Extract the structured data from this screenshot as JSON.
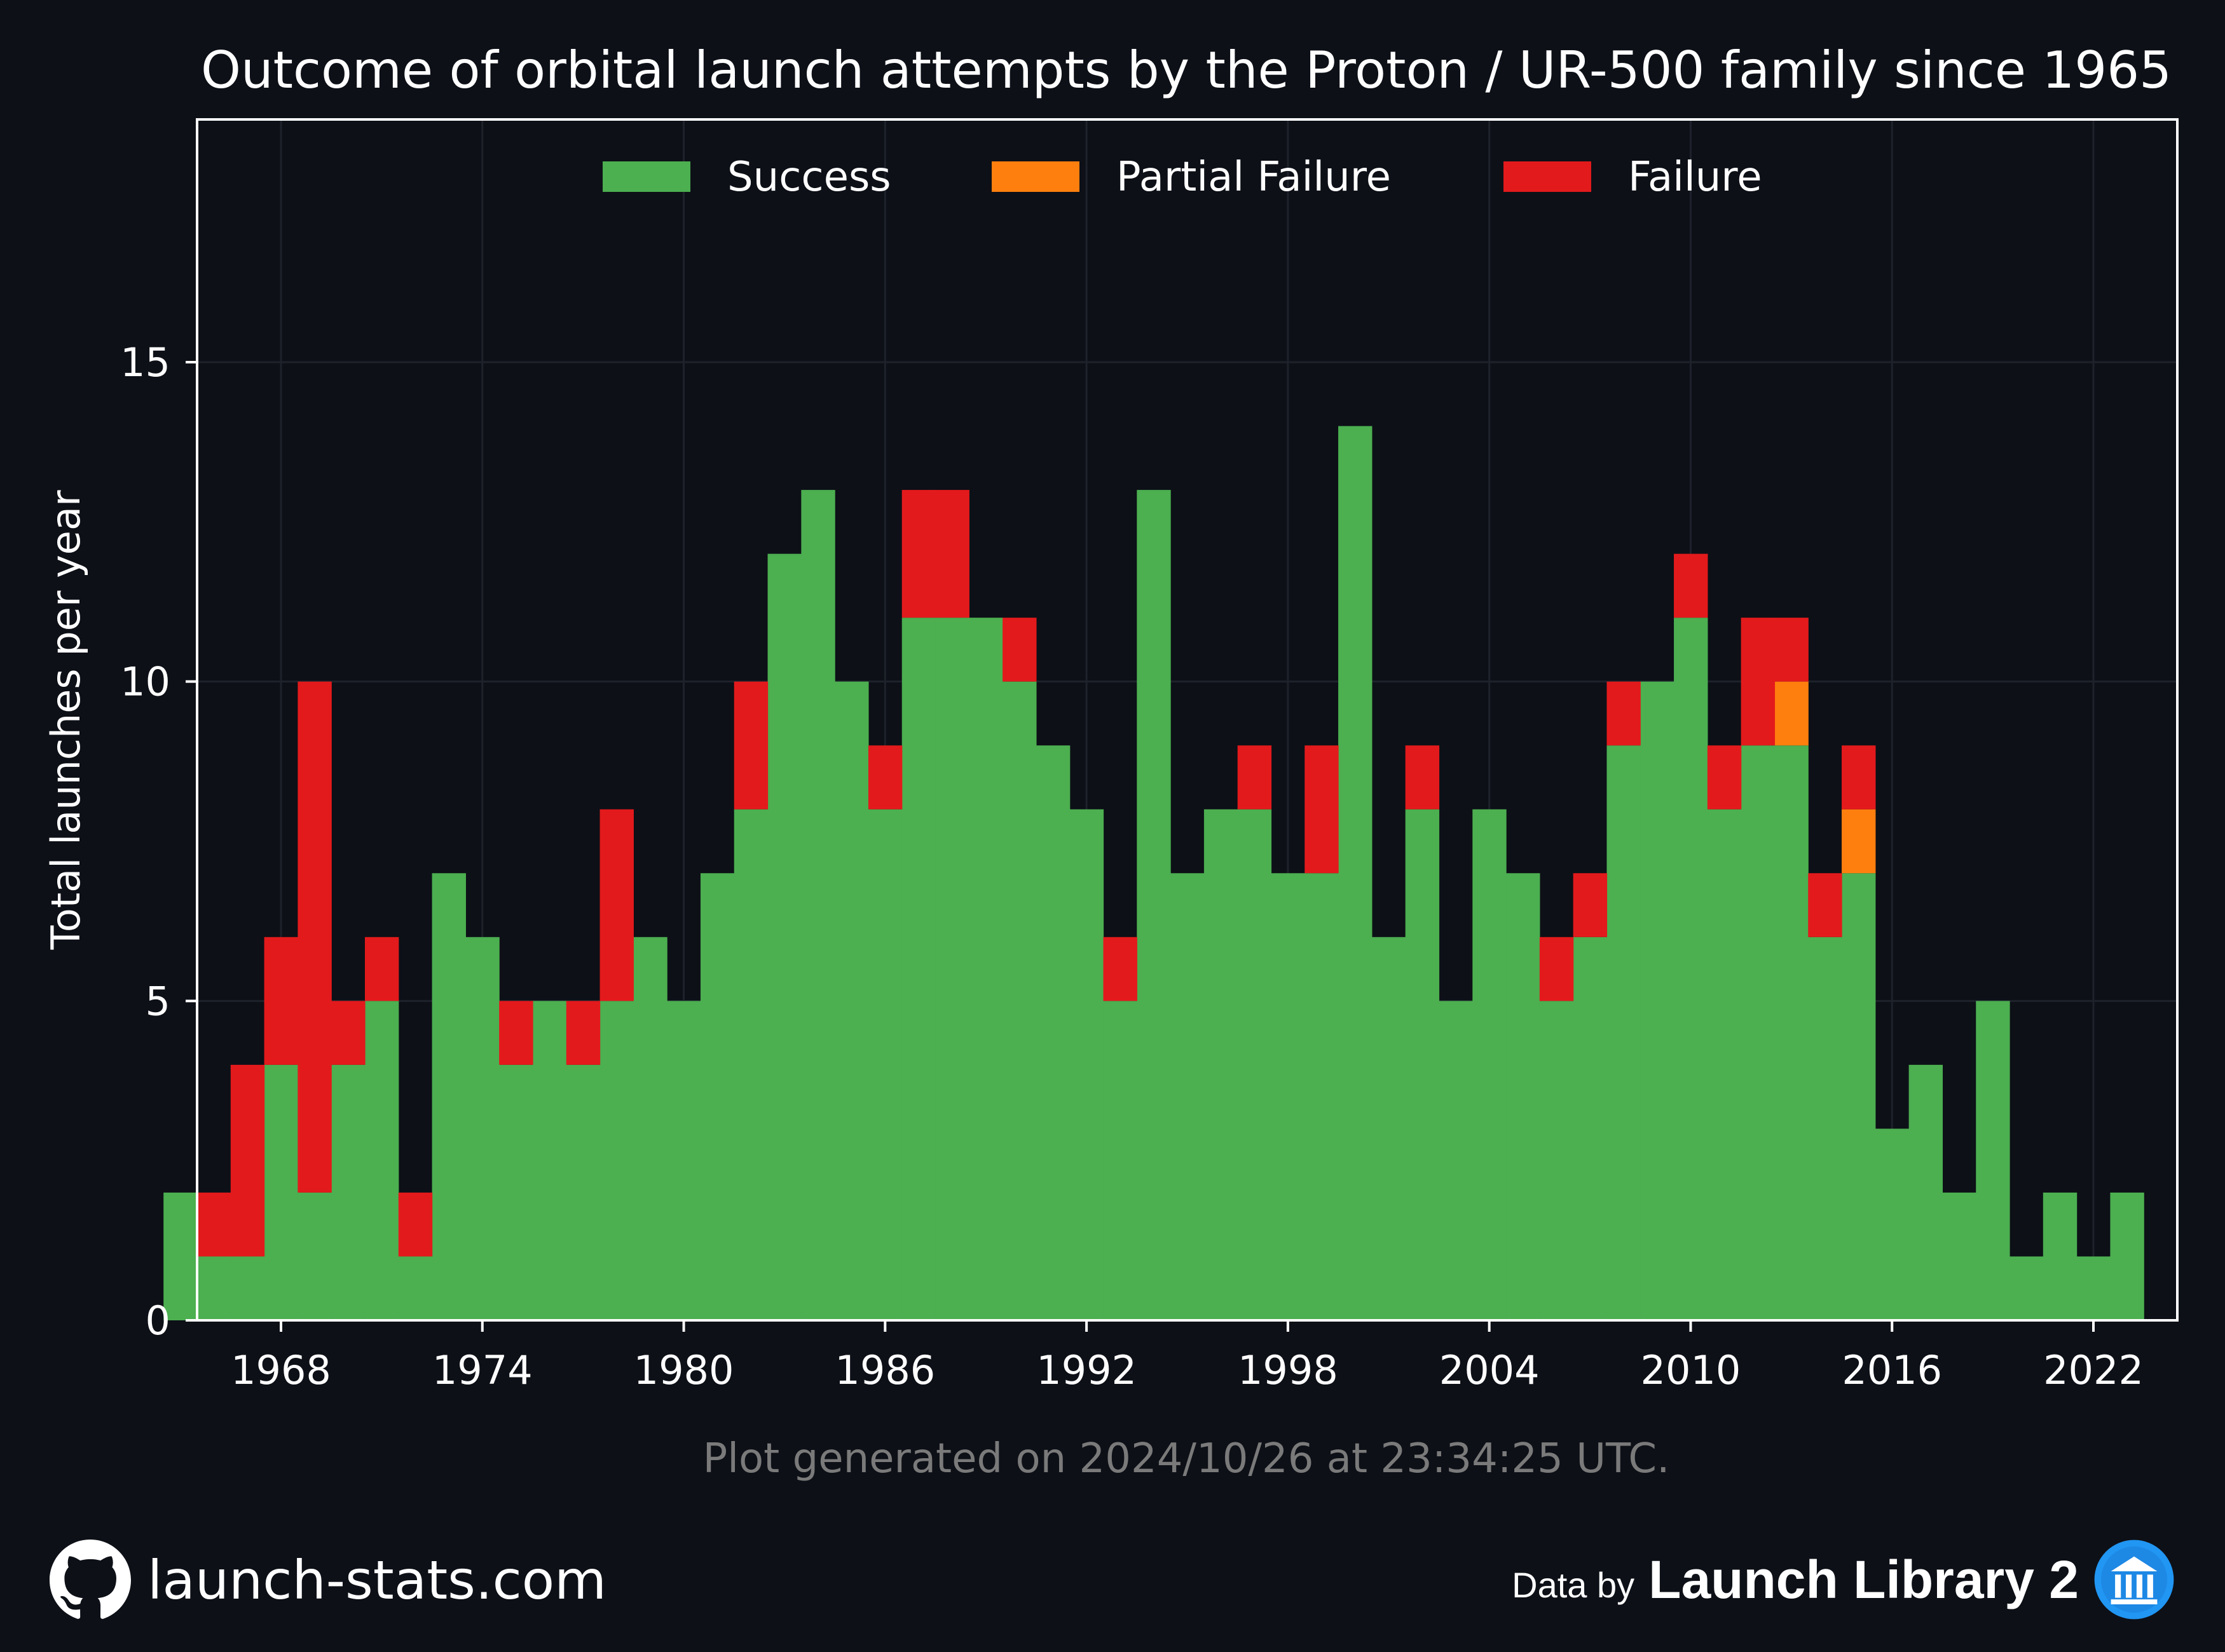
{
  "colors": {
    "background": "#0d1017",
    "success": "#4caf50",
    "partial_failure": "#ff7f0e",
    "failure": "#e31a1c",
    "axis": "#ffffff",
    "grid": "#1e222b",
    "footnote": "#7a7a7a",
    "brand_icon": "#2196f3"
  },
  "footer": {
    "site_icon": "github-icon",
    "site": "launch-stats.com",
    "data_by": "Data by",
    "brand": "Launch Library 2",
    "brand_icon": "library-icon"
  },
  "chart_data": {
    "type": "bar",
    "stacked": true,
    "title": "Outcome of orbital launch attempts by the Proton / UR-500 family since 1965",
    "ylabel": "Total launches per year",
    "xlabel": "",
    "footnote": "Plot generated on 2024/10/26 at 23:34:25 UTC.",
    "xlim": [
      1965.5,
      2024.5
    ],
    "ylim": [
      0,
      18.8
    ],
    "xticks": [
      1968,
      1974,
      1980,
      1986,
      1992,
      1998,
      2004,
      2010,
      2016,
      2022
    ],
    "yticks": [
      0,
      5,
      10,
      15
    ],
    "grid": true,
    "legend": {
      "position": "top-center",
      "entries": [
        "Success",
        "Partial Failure",
        "Failure"
      ]
    },
    "categories": [
      1965,
      1966,
      1967,
      1968,
      1969,
      1970,
      1971,
      1972,
      1973,
      1974,
      1975,
      1976,
      1977,
      1978,
      1979,
      1980,
      1981,
      1982,
      1983,
      1984,
      1985,
      1986,
      1987,
      1988,
      1989,
      1990,
      1991,
      1992,
      1993,
      1994,
      1995,
      1996,
      1997,
      1998,
      1999,
      2000,
      2001,
      2002,
      2003,
      2004,
      2005,
      2006,
      2007,
      2008,
      2009,
      2010,
      2011,
      2012,
      2013,
      2014,
      2015,
      2016,
      2017,
      2018,
      2019,
      2020,
      2021,
      2022,
      2023,
      2024
    ],
    "series": [
      {
        "name": "Success",
        "color": "#4caf50",
        "values": [
          2,
          1,
          1,
          4,
          2,
          4,
          5,
          1,
          7,
          6,
          4,
          5,
          4,
          5,
          6,
          5,
          7,
          8,
          12,
          13,
          10,
          8,
          11,
          11,
          11,
          10,
          9,
          8,
          5,
          13,
          7,
          8,
          8,
          7,
          7,
          14,
          6,
          8,
          5,
          8,
          7,
          5,
          6,
          9,
          10,
          11,
          8,
          9,
          9,
          6,
          7,
          3,
          4,
          2,
          5,
          1,
          2,
          1,
          2,
          0
        ]
      },
      {
        "name": "Partial Failure",
        "color": "#ff7f0e",
        "values": [
          0,
          0,
          0,
          0,
          0,
          0,
          0,
          0,
          0,
          0,
          0,
          0,
          0,
          0,
          0,
          0,
          0,
          0,
          0,
          0,
          0,
          0,
          0,
          0,
          0,
          0,
          0,
          0,
          0,
          0,
          0,
          0,
          0,
          0,
          0,
          0,
          0,
          0,
          0,
          0,
          0,
          0,
          0,
          0,
          0,
          0,
          0,
          0,
          1,
          0,
          1,
          0,
          0,
          0,
          0,
          0,
          0,
          0,
          0,
          0
        ]
      },
      {
        "name": "Failure",
        "color": "#e31a1c",
        "values": [
          0,
          1,
          3,
          2,
          8,
          1,
          1,
          1,
          0,
          0,
          1,
          0,
          1,
          3,
          0,
          0,
          0,
          2,
          0,
          0,
          0,
          1,
          2,
          2,
          0,
          1,
          0,
          0,
          1,
          0,
          0,
          0,
          1,
          0,
          2,
          0,
          0,
          1,
          0,
          0,
          0,
          1,
          1,
          1,
          0,
          1,
          1,
          2,
          1,
          1,
          1,
          0,
          0,
          0,
          0,
          0,
          0,
          0,
          0,
          0
        ]
      }
    ]
  }
}
